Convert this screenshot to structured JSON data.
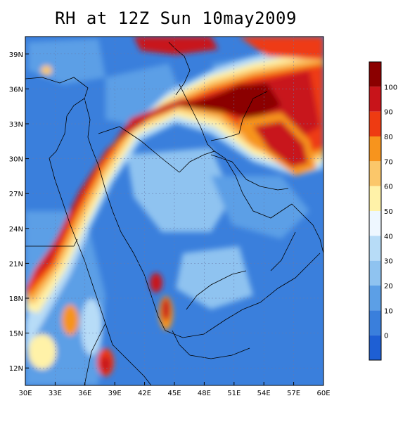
{
  "title": "RH at 12Z Sun 10may2009",
  "lat_ticks": [
    "39N",
    "36N",
    "33N",
    "30N",
    "27N",
    "24N",
    "21N",
    "18N",
    "15N",
    "12N"
  ],
  "lon_ticks": [
    "30E",
    "33E",
    "36E",
    "39E",
    "42E",
    "45E",
    "48E",
    "51E",
    "54E",
    "57E",
    "60E"
  ],
  "extent": {
    "lon": [
      30,
      60
    ],
    "lat": [
      10.5,
      40.5
    ]
  },
  "colorbar": {
    "labels": [
      "100",
      "90",
      "80",
      "70",
      "60",
      "50",
      "40",
      "30",
      "20",
      "10",
      "0"
    ],
    "levels": [
      {
        "color": "#8b0000"
      },
      {
        "color": "#c8141a"
      },
      {
        "color": "#ee3b12"
      },
      {
        "color": "#f7941d"
      },
      {
        "color": "#fbc76a"
      },
      {
        "color": "#fff2a8"
      },
      {
        "color": "#eef7ff"
      },
      {
        "color": "#b7dcf7"
      },
      {
        "color": "#8fc3f0"
      },
      {
        "color": "#5c9fe6"
      },
      {
        "color": "#3a7fdc"
      },
      {
        "color": "#1e5fd4"
      }
    ]
  }
}
